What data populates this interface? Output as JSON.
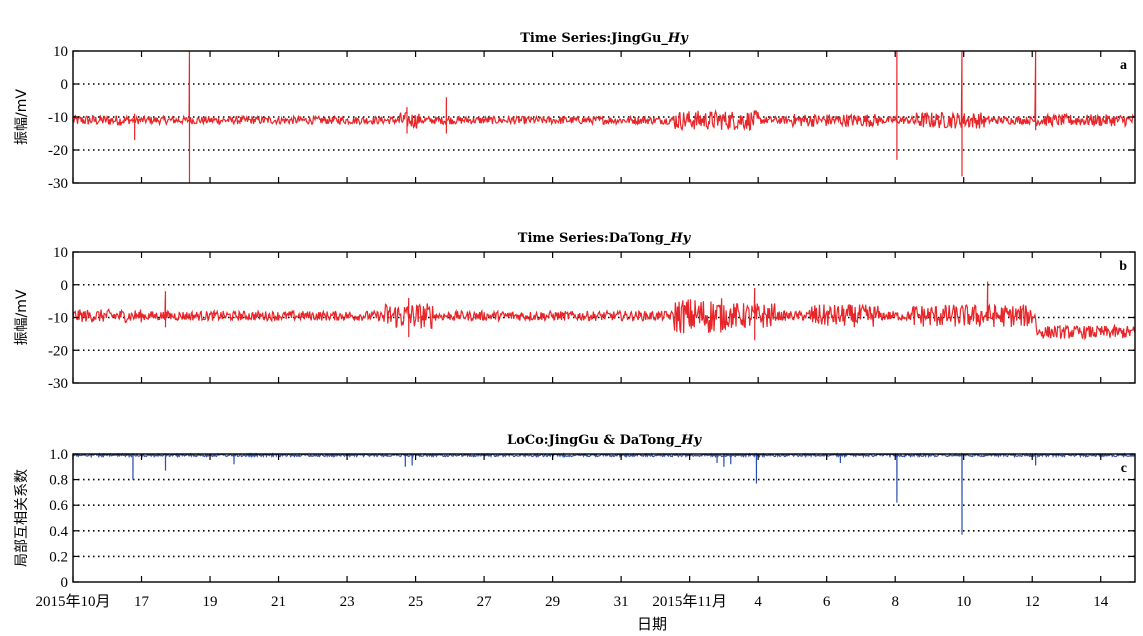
{
  "figure": {
    "x_axis_label": "日期",
    "x_ticks": [
      {
        "day": 15,
        "label": "2015年10月"
      },
      {
        "day": 17,
        "label": "17"
      },
      {
        "day": 19,
        "label": "19"
      },
      {
        "day": 21,
        "label": "21"
      },
      {
        "day": 23,
        "label": "23"
      },
      {
        "day": 25,
        "label": "25"
      },
      {
        "day": 27,
        "label": "27"
      },
      {
        "day": 29,
        "label": "29"
      },
      {
        "day": 31,
        "label": "31"
      },
      {
        "day": 33,
        "label": "2015年11月"
      },
      {
        "day": 35,
        "label": "4"
      },
      {
        "day": 37,
        "label": "6"
      },
      {
        "day": 39,
        "label": "8"
      },
      {
        "day": 41,
        "label": "10"
      },
      {
        "day": 43,
        "label": "12"
      },
      {
        "day": 45,
        "label": "14"
      }
    ]
  },
  "chart_data": [
    {
      "type": "line",
      "panel_letter": "a",
      "title_prefix": "Time Series:JingGu_",
      "title_italic": "Hy",
      "ylabel": "振幅/mV",
      "ylim": [
        -30,
        10
      ],
      "yticks": [
        10,
        0,
        -10,
        -20,
        -30
      ],
      "xlim": [
        15,
        46
      ],
      "grid": "dotted-horizontal",
      "color": "#e8262a",
      "series": {
        "baseline": -11,
        "noise_amplitude": 1.2,
        "noisy_intervals": [
          {
            "start": 15,
            "end": 16.6,
            "amplitude": 1.6
          },
          {
            "start": 24.5,
            "end": 25.1,
            "amplitude": 2.5
          },
          {
            "start": 32.5,
            "end": 35,
            "amplitude": 3
          },
          {
            "start": 36,
            "end": 38.5,
            "amplitude": 2
          },
          {
            "start": 39.5,
            "end": 41.6,
            "amplitude": 2.5
          },
          {
            "start": 43,
            "end": 46,
            "amplitude": 1.8
          }
        ],
        "spikes": [
          {
            "x": 16.8,
            "min": -17,
            "max": -9
          },
          {
            "x": 18.4,
            "min": -30,
            "max": 10
          },
          {
            "x": 24.75,
            "min": -15,
            "max": -7
          },
          {
            "x": 25.9,
            "min": -15,
            "max": -4
          },
          {
            "x": 39.05,
            "min": -23,
            "max": 10
          },
          {
            "x": 40.95,
            "min": -28,
            "max": 10
          },
          {
            "x": 43.1,
            "min": -14,
            "max": 10
          }
        ]
      }
    },
    {
      "type": "line",
      "panel_letter": "b",
      "title_prefix": "Time Series:DaTong_",
      "title_italic": "Hy",
      "ylabel": "振幅/mV",
      "ylim": [
        -30,
        10
      ],
      "yticks": [
        10,
        0,
        -10,
        -20,
        -30
      ],
      "xlim": [
        15,
        46
      ],
      "grid": "dotted-horizontal",
      "color": "#e8262a",
      "series": {
        "baseline": -9.5,
        "noise_amplitude": 1.5,
        "step": {
          "x": 43.1,
          "new_baseline": -14.5
        },
        "noisy_intervals": [
          {
            "start": 15,
            "end": 17,
            "amplitude": 2
          },
          {
            "start": 24,
            "end": 25.5,
            "amplitude": 4
          },
          {
            "start": 32.5,
            "end": 34,
            "amplitude": 5.5
          },
          {
            "start": 34,
            "end": 35.5,
            "amplitude": 4
          },
          {
            "start": 36.5,
            "end": 38.5,
            "amplitude": 3.5
          },
          {
            "start": 39.5,
            "end": 43,
            "amplitude": 3.5
          },
          {
            "start": 43.1,
            "end": 46,
            "amplitude": 2
          }
        ],
        "spikes": [
          {
            "x": 17.7,
            "min": -13,
            "max": -2
          },
          {
            "x": 24.8,
            "min": -16,
            "max": -4
          },
          {
            "x": 34.9,
            "min": -17,
            "max": -1
          },
          {
            "x": 41.7,
            "min": -11,
            "max": 1
          }
        ]
      }
    },
    {
      "type": "line",
      "panel_letter": "c",
      "title_prefix": "LoCo:JingGu & DaTong_",
      "title_italic": "Hy",
      "ylabel": "局部互相关系数",
      "ylim": [
        0,
        1.0
      ],
      "yticks": [
        1.0,
        0.8,
        0.6,
        0.4,
        0.2,
        0
      ],
      "xlim": [
        15,
        46
      ],
      "grid": "dotted-horizontal",
      "color": "#2b4fb0",
      "series": {
        "baseline": 1.0,
        "noise_amplitude": 0.02,
        "dips": [
          {
            "x": 16.75,
            "min": 0.8
          },
          {
            "x": 17.7,
            "min": 0.87
          },
          {
            "x": 19.7,
            "min": 0.92
          },
          {
            "x": 24.7,
            "min": 0.9
          },
          {
            "x": 24.9,
            "min": 0.91
          },
          {
            "x": 33.8,
            "min": 0.93
          },
          {
            "x": 34.0,
            "min": 0.9
          },
          {
            "x": 34.2,
            "min": 0.92
          },
          {
            "x": 34.95,
            "min": 0.77
          },
          {
            "x": 37.4,
            "min": 0.93
          },
          {
            "x": 39.05,
            "min": 0.62
          },
          {
            "x": 40.95,
            "min": 0.37
          },
          {
            "x": 43.1,
            "min": 0.91
          }
        ]
      }
    }
  ]
}
